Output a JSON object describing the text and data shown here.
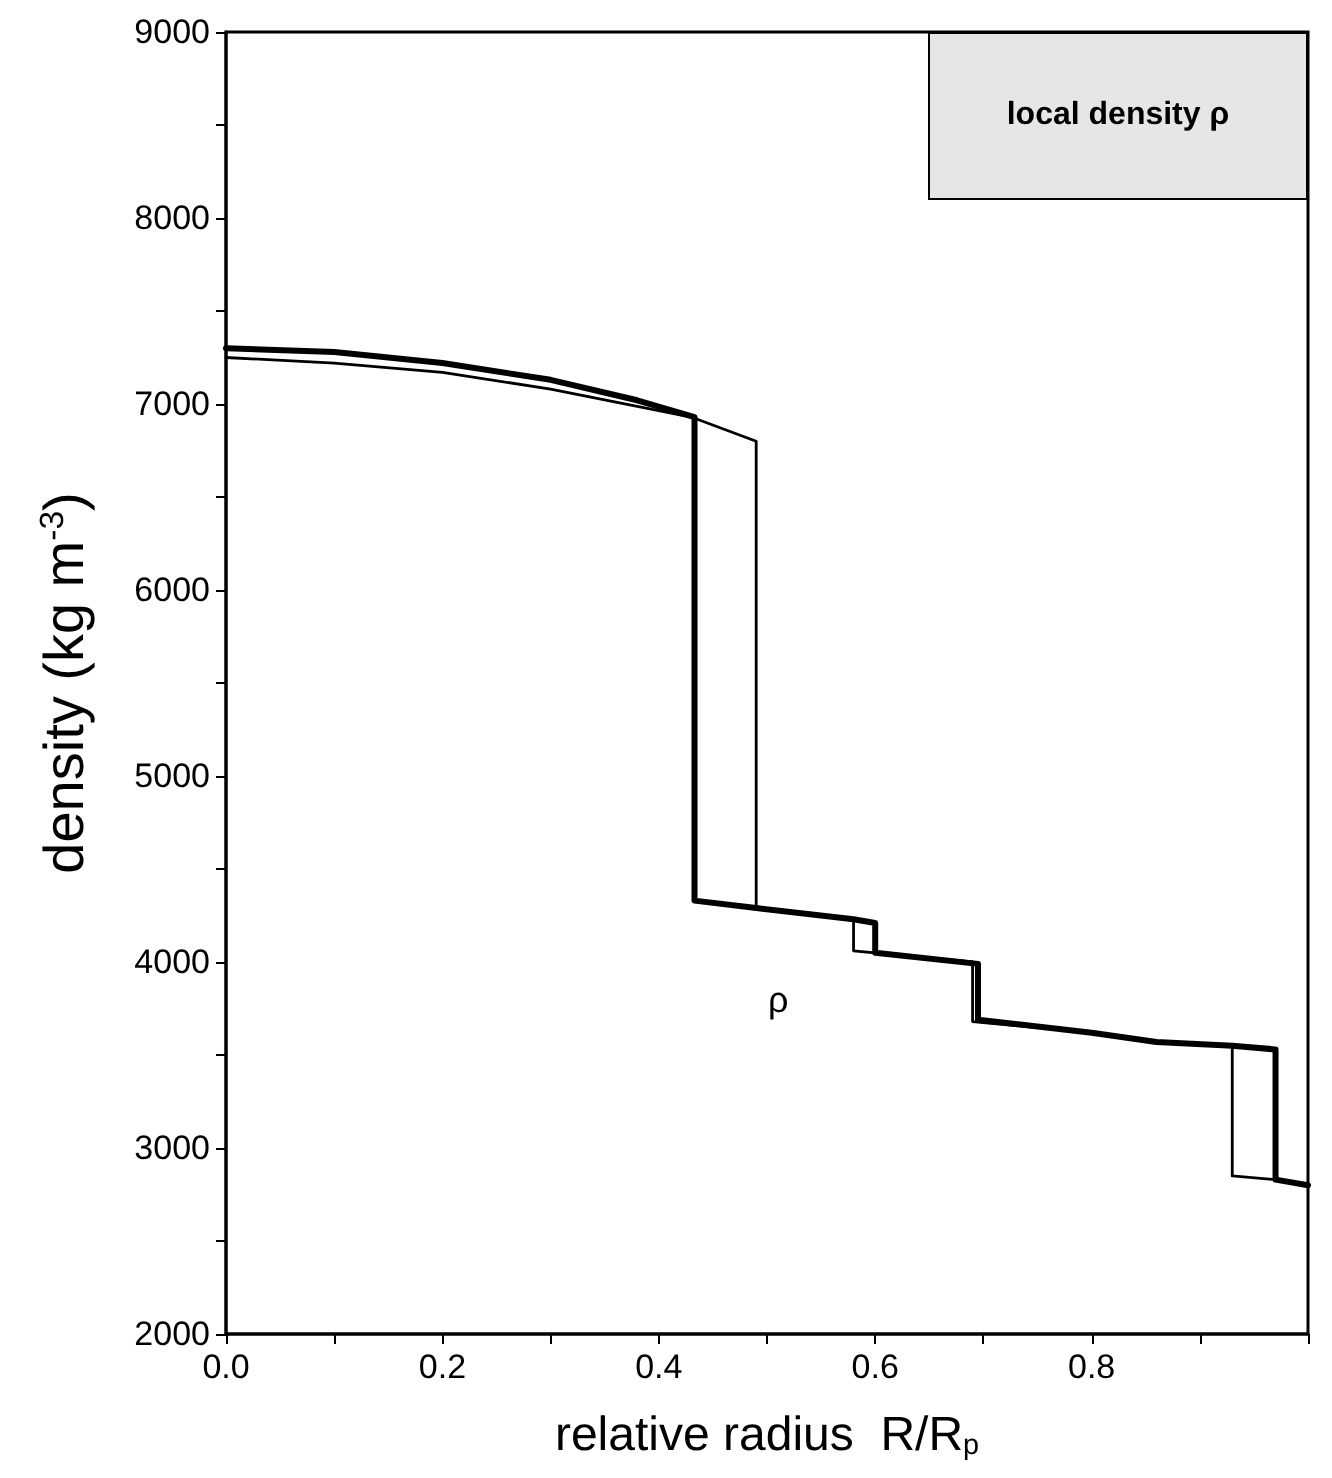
{
  "chart_data": {
    "type": "line",
    "xlabel": "relative radius  R/R$_{p}$",
    "ylabel": "density (kg m$^{-3}$)",
    "xlim": [
      0,
      1
    ],
    "xticks": [
      {
        "value": 0,
        "label": "0.0"
      },
      {
        "value": 0.1,
        "label": null
      },
      {
        "value": 0.2,
        "label": "0.2"
      },
      {
        "value": 0.3,
        "label": null
      },
      {
        "value": 0.4,
        "label": "0.4"
      },
      {
        "value": 0.5,
        "label": null
      },
      {
        "value": 0.6,
        "label": "0.6"
      },
      {
        "value": 0.7,
        "label": null
      },
      {
        "value": 0.8,
        "label": "0.8"
      },
      {
        "value": 0.9,
        "label": null
      },
      {
        "value": 1,
        "label": null
      }
    ],
    "ylim": [
      2000,
      9000
    ],
    "yticks": [
      2000,
      {
        "value": 2500,
        "label": null
      },
      3000,
      {
        "value": 3500,
        "label": null
      },
      4000,
      {
        "value": 4500,
        "label": null
      },
      5000,
      {
        "value": 5500,
        "label": null
      },
      6000,
      {
        "value": 6500,
        "label": null
      },
      7000,
      {
        "value": 7500,
        "label": null
      },
      8000,
      {
        "value": 8500,
        "label": null
      },
      9000
    ],
    "grid": false,
    "marker": "none",
    "line_style": "solid",
    "title": "local density ρ",
    "series": [
      {
        "color": "#000000",
        "x": [
          0,
          0.1,
          0.2,
          0.3,
          0.38,
          0.433,
          0.433,
          0.49,
          0.58,
          0.6,
          0.6,
          0.695,
          0.695,
          0.8,
          0.86,
          0.93,
          0.97,
          0.97,
          1.0
        ],
        "values": [
          7300,
          7280,
          7220,
          7130,
          7020,
          6930,
          4330,
          4290,
          4230,
          4210,
          4050,
          3990,
          3690,
          3620,
          3570,
          3550,
          3530,
          2830,
          2800
        ]
      },
      {
        "color": "#000000",
        "x": [
          0,
          0.1,
          0.2,
          0.3,
          0.43,
          0.49,
          0.49,
          0.58,
          0.58,
          0.69,
          0.69,
          0.8,
          0.86,
          0.93,
          0.93,
          0.97,
          1.0
        ],
        "values": [
          7250,
          7220,
          7170,
          7080,
          6930,
          6800,
          4290,
          4230,
          4060,
          4000,
          3680,
          3620,
          3570,
          3550,
          2850,
          2830,
          2800
        ]
      }
    ],
    "annotations": [
      "ρ"
    ]
  }
}
